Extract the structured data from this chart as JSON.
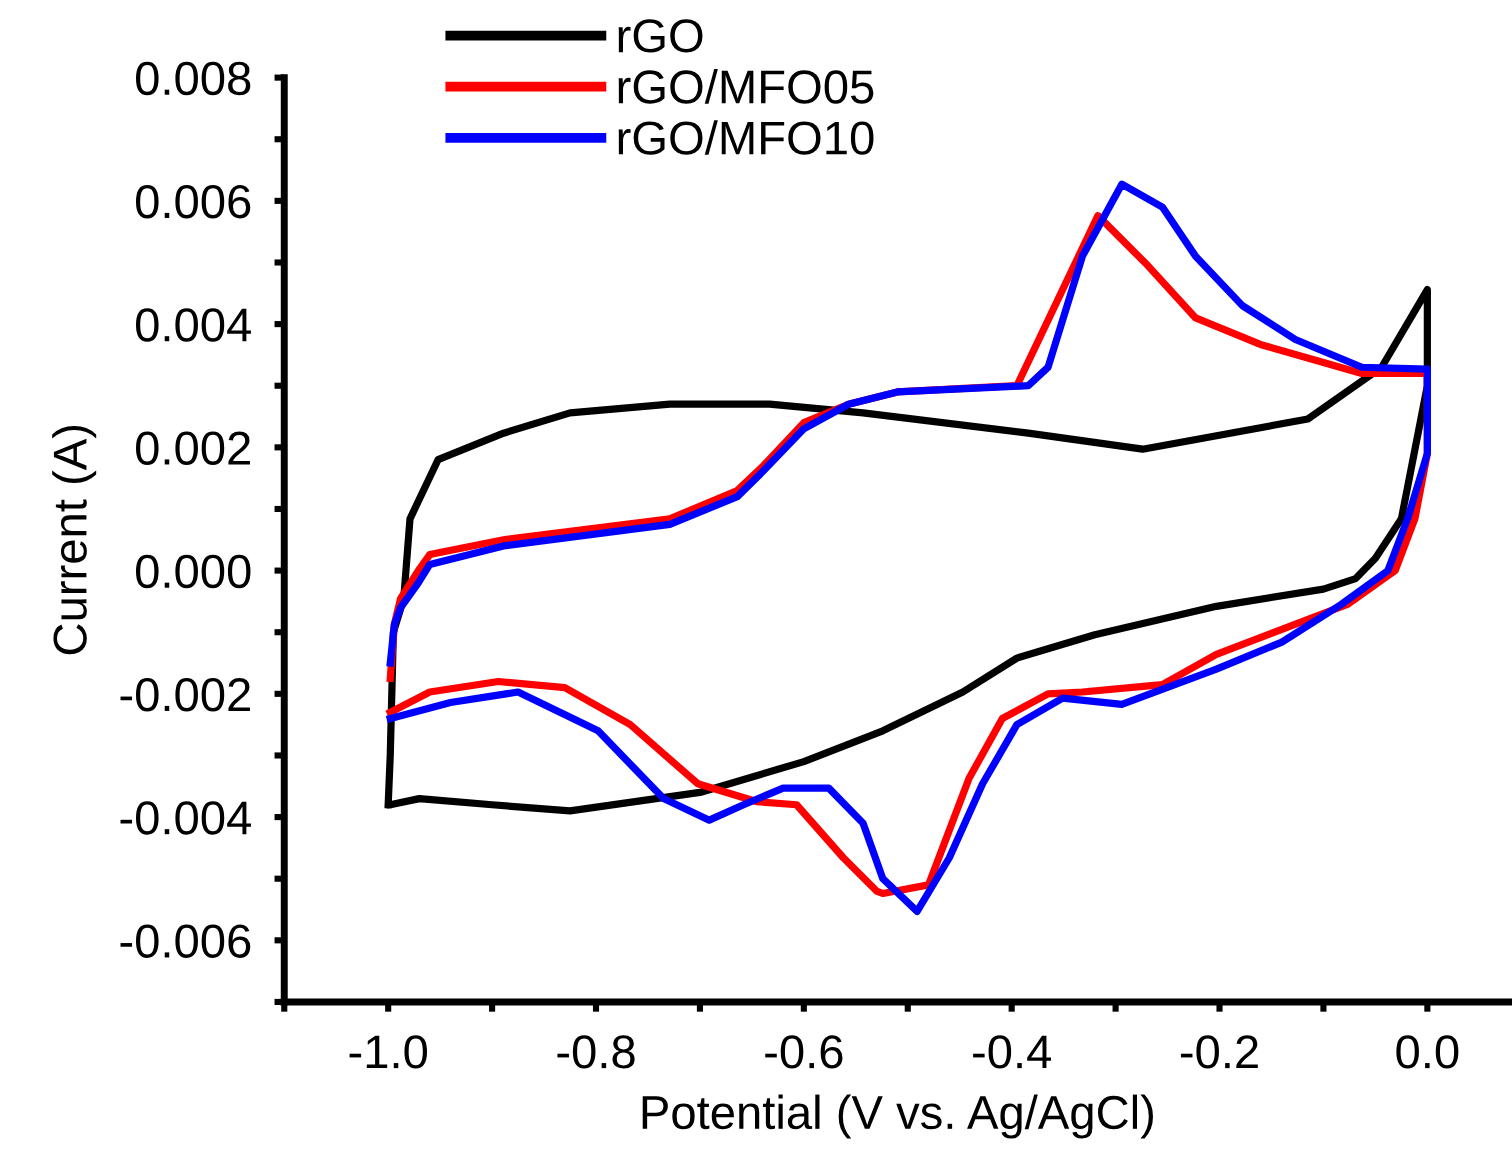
{
  "chart_data": {
    "type": "line",
    "xlabel": "Potential (V vs. Ag/AgCl)",
    "ylabel": "Current (A)",
    "xlim": [
      -1.1,
      0.08
    ],
    "ylim": [
      -0.007,
      0.008
    ],
    "xticks": [
      {
        "value": -1.1,
        "label": null
      },
      {
        "value": -1.0,
        "label": "-1.0"
      },
      {
        "value": -0.9,
        "label": null
      },
      -0.8,
      {
        "value": -0.7,
        "label": null
      },
      -0.6,
      {
        "value": -0.5,
        "label": null
      },
      -0.4,
      {
        "value": -0.3,
        "label": null
      },
      -0.2,
      {
        "value": -0.1,
        "label": null
      },
      {
        "value": 0,
        "label": "0.0"
      }
    ],
    "yticks": [
      {
        "value": -0.007,
        "label": null
      },
      -0.006,
      {
        "value": -0.005,
        "label": null
      },
      -0.004,
      {
        "value": -0.003,
        "label": null
      },
      -0.002,
      {
        "value": -0.001,
        "label": null
      },
      {
        "value": 0,
        "label": "0.000"
      },
      {
        "value": 0.001,
        "label": null
      },
      0.002,
      {
        "value": 0.003,
        "label": null
      },
      0.004,
      {
        "value": 0.005,
        "label": null
      },
      0.006,
      {
        "value": 0.007,
        "label": null
      },
      0.008
    ],
    "grid": false,
    "legend": "top left",
    "marker": "none",
    "line_style": "solid",
    "series": [
      {
        "name": "rGO",
        "color": "#000000",
        "x": [
          -1.0,
          -0.998,
          -0.995,
          -0.985,
          -0.979,
          -0.952,
          -0.889,
          -0.825,
          -0.729,
          -0.633,
          -0.543,
          -0.384,
          -0.274,
          -0.115,
          -0.044,
          0.0,
          0.0,
          -0.025,
          -0.05,
          -0.069,
          -0.1,
          -0.203,
          -0.32,
          -0.395,
          -0.447,
          -0.524,
          -0.6,
          -0.7,
          -0.825,
          -0.9,
          -0.97,
          -0.998
        ],
        "values": [
          -0.0038,
          -0.003,
          -0.001,
          -0.00045,
          0.00084,
          0.0018,
          0.00223,
          0.00256,
          0.0027,
          0.0027,
          0.00256,
          0.00223,
          0.00197,
          0.00246,
          0.0033,
          0.00456,
          0.003,
          0.00084,
          0.0002,
          -0.00013,
          -0.0003,
          -0.00058,
          -0.00104,
          -0.00142,
          -0.00197,
          -0.0026,
          -0.0031,
          -0.0036,
          -0.0039,
          -0.0038,
          -0.0037,
          -0.0038
        ]
      },
      {
        "name": "rGO/MFO05",
        "color": "#ff0000",
        "x": [
          -0.998,
          -0.994,
          -0.988,
          -0.971,
          -0.96,
          -0.889,
          -0.729,
          -0.664,
          -0.639,
          -0.6,
          -0.557,
          -0.51,
          -0.395,
          -0.364,
          -0.317,
          -0.269,
          -0.223,
          -0.159,
          -0.063,
          0.0,
          0.0,
          -0.012,
          -0.031,
          -0.077,
          -0.203,
          -0.255,
          -0.332,
          -0.365,
          -0.409,
          -0.441,
          -0.48,
          -0.524,
          -0.53,
          -0.562,
          -0.607,
          -0.645,
          -0.702,
          -0.767,
          -0.83,
          -0.894,
          -0.96,
          -0.998
        ],
        "values": [
          -0.00175,
          -0.00087,
          -0.00045,
          0.0,
          0.00026,
          0.0005,
          0.00084,
          0.0013,
          0.0017,
          0.0024,
          0.0027,
          0.0029,
          0.003,
          0.0041,
          0.00576,
          0.00495,
          0.0041,
          0.00366,
          0.0032,
          0.0032,
          0.0019,
          0.00084,
          0.0,
          -0.00055,
          -0.00136,
          -0.00185,
          -0.00197,
          -0.002,
          -0.0024,
          -0.00337,
          -0.0051,
          -0.00524,
          -0.0052,
          -0.00466,
          -0.0038,
          -0.00375,
          -0.00346,
          -0.0025,
          -0.0019,
          -0.0018,
          -0.00197,
          -0.0023
        ]
      },
      {
        "name": "rGO/MFO10",
        "color": "#0000ff",
        "x": [
          -0.998,
          -0.994,
          -0.988,
          -0.971,
          -0.96,
          -0.889,
          -0.729,
          -0.664,
          -0.64,
          -0.6,
          -0.557,
          -0.51,
          -0.384,
          -0.365,
          -0.332,
          -0.294,
          -0.255,
          -0.223,
          -0.178,
          -0.127,
          -0.063,
          0.0,
          0.0,
          -0.019,
          -0.038,
          -0.083,
          -0.14,
          -0.203,
          -0.294,
          -0.351,
          -0.395,
          -0.428,
          -0.46,
          -0.491,
          -0.524,
          -0.543,
          -0.576,
          -0.62,
          -0.658,
          -0.691,
          -0.735,
          -0.798,
          -0.875,
          -0.94,
          -0.998
        ],
        "values": [
          -0.0015,
          -0.00087,
          -0.0006,
          -0.0002,
          0.0001,
          0.0004,
          0.00075,
          0.0012,
          0.0016,
          0.0023,
          0.0027,
          0.0029,
          0.003,
          0.0033,
          0.0051,
          0.00627,
          0.0059,
          0.0051,
          0.0043,
          0.00375,
          0.0033,
          0.00327,
          0.0019,
          0.00084,
          0.0,
          -0.00055,
          -0.00116,
          -0.0016,
          -0.00217,
          -0.00207,
          -0.0025,
          -0.00346,
          -0.00466,
          -0.00553,
          -0.005,
          -0.0041,
          -0.00353,
          -0.00353,
          -0.0038,
          -0.00405,
          -0.0037,
          -0.0026,
          -0.00197,
          -0.00214,
          -0.0024
        ]
      }
    ]
  }
}
